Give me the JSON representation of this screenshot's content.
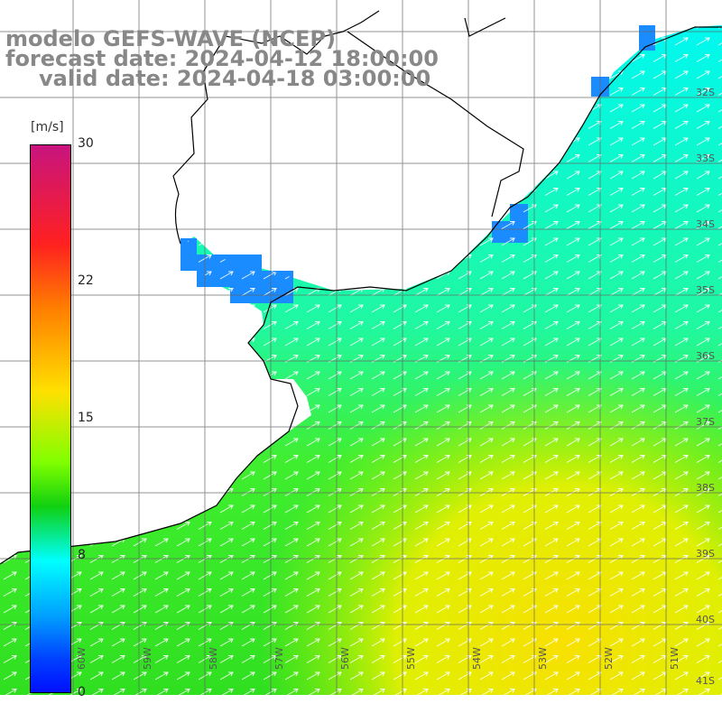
{
  "title": {
    "line1": "modelo GEFS-WAVE (NCEP)",
    "line2": "forecast date: 2024-04-12 18:00:00",
    "line3": "valid date: 2024-04-18 03:00:00"
  },
  "colorbar": {
    "unit": "[m/s]",
    "ticks": [
      "30",
      "22",
      "15",
      "8",
      "0"
    ],
    "colors": [
      "#c8147f",
      "#ff2020",
      "#ff8000",
      "#ffe000",
      "#80ff00",
      "#10d010",
      "#00ffff",
      "#00a0ff",
      "#0010ff"
    ]
  },
  "lat_labels": [
    "32S",
    "33S",
    "34S",
    "35S",
    "36S",
    "37S",
    "38S",
    "39S",
    "40S",
    "41S"
  ],
  "lon_labels": [
    "60W",
    "59W",
    "58W",
    "57W",
    "56W",
    "55W",
    "54W",
    "53W",
    "52W",
    "51W"
  ],
  "field": {
    "arrow_direction": "northeast",
    "max_color": "#f0e000",
    "land_color": "#ffffff",
    "coast_color": "#000000"
  }
}
